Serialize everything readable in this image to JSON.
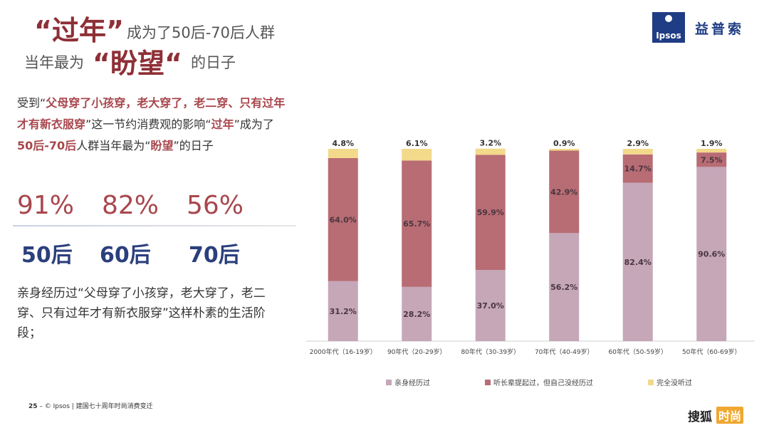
{
  "title": {
    "line1_quote": "“过年”",
    "line1_rest": "成为了50后-70后人群",
    "line2_prefix": "当年最为",
    "line2_quote": "“盼望“",
    "line2_suffix": "的日子"
  },
  "logo": {
    "box_text": "Ipsos",
    "cn": "益普索"
  },
  "paragraph1": {
    "p1": "受到“",
    "h1": "父母穿了小孩穿，老大穿了，老二穿、只有过年才有新衣服穿",
    "p2": "”这一节约消费观的影响“",
    "h2": "过年",
    "p3": "”成为了",
    "h3": "50后-70后",
    "p4": "人群当年最为“",
    "h4": "盼望",
    "p5": "”的日子"
  },
  "stats": [
    {
      "pct": "91%",
      "gen": "50后"
    },
    {
      "pct": "82%",
      "gen": "60后"
    },
    {
      "pct": "56%",
      "gen": "70后"
    }
  ],
  "paragraph2": "亲身经历过“父母穿了小孩穿，老大穿了，老二穿、只有过年才有新衣服穿”这样朴素的生活阶段；",
  "footer": {
    "page": "25",
    "dash": " – ",
    "text": "© Ipsos | 建国七十周年时尚消费变迁"
  },
  "watermark": {
    "brand": "搜狐",
    "badge": "时尚"
  },
  "chart_data": {
    "type": "bar",
    "stacked": true,
    "categories": [
      "2000年代（16-19岁）",
      "90年代（20-29岁）",
      "80年代（30-39岁）",
      "70年代（40-49岁）",
      "60年代（50-59岁）",
      "50年代（60-69岁）"
    ],
    "series": [
      {
        "name": "亲身经历过",
        "color": "#c5a7b8",
        "values": [
          31.2,
          28.2,
          37.0,
          56.2,
          82.4,
          90.6
        ]
      },
      {
        "name": "听长辈提起过，但自己没经历过",
        "color": "#b86c74",
        "values": [
          64.0,
          65.7,
          59.9,
          42.9,
          14.7,
          7.5
        ]
      },
      {
        "name": "完全没听过",
        "color": "#f3d98b",
        "values": [
          4.8,
          6.1,
          3.2,
          0.9,
          2.9,
          1.9
        ]
      }
    ],
    "value_labels": [
      [
        "31.2%",
        "28.2%",
        "37.0%",
        "56.2%",
        "82.4%",
        "90.6%"
      ],
      [
        "64.0%",
        "65.7%",
        "59.9%",
        "42.9%",
        "14.7%",
        "7.5%"
      ],
      [
        "4.8%",
        "6.1%",
        "3.2%",
        "0.9%",
        "2.9%",
        "1.9%"
      ]
    ],
    "ylim": [
      0,
      100
    ],
    "legend": "bottom",
    "grid": false
  }
}
